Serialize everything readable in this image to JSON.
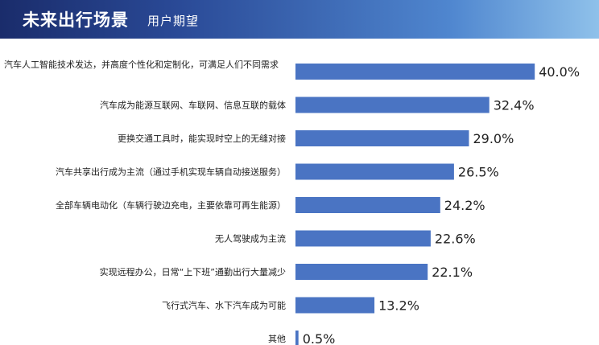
{
  "header": {
    "title": "未来出行场景",
    "subtitle": "用户期望"
  },
  "chart_data": {
    "type": "bar",
    "orientation": "horizontal",
    "categories": [
      "汽车人工智能技术发达，并高度个性化和定制化，可满足人们不同需求",
      "汽车成为能源互联网、车联网、信息互联的载体",
      "更换交通工具时，能实现时空上的无缝对接",
      "汽车共享出行成为主流（通过手机实现车辆自动接送服务）",
      "全部车辆电动化（车辆行驶边充电，主要依靠可再生能源）",
      "无人驾驶成为主流",
      "实现远程办公，日常“上下班”通勤出行大量减少",
      "飞行式汽车、水下汽车成为可能",
      "其他"
    ],
    "values": [
      40.0,
      32.4,
      29.0,
      26.5,
      24.2,
      22.6,
      22.1,
      13.2,
      0.5
    ],
    "value_labels": [
      "40.0%",
      "32.4%",
      "29.0%",
      "26.5%",
      "24.2%",
      "22.6%",
      "22.1%",
      "13.2%",
      "0.5%"
    ],
    "bar_color": "#4a74c3",
    "xlim": [
      0,
      40
    ],
    "grid": false,
    "legend": "none"
  }
}
